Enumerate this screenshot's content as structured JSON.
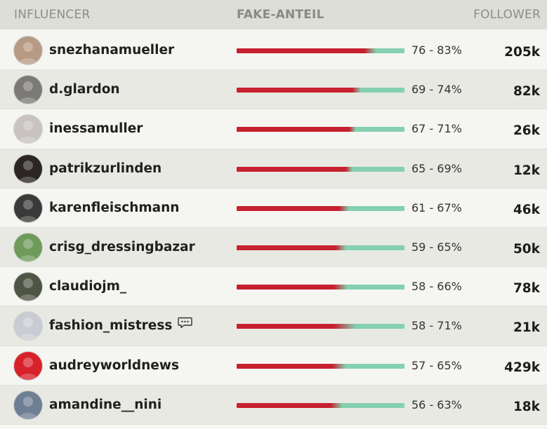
{
  "header": {
    "influencer": "INFLUENCER",
    "fake": "FAKE-ANTEIL",
    "follower": "FOLLOWER"
  },
  "colors": {
    "fake_bar": "#c7202f",
    "real_bar": "#84d0b0"
  },
  "chart_data": {
    "type": "table",
    "columns": [
      "INFLUENCER",
      "FAKE-ANTEIL",
      "FOLLOWER"
    ],
    "rows": [
      {
        "name": "snezhanamueller",
        "fake_min": 76,
        "fake_max": 83,
        "range": "76 - 83%",
        "followers": "205k",
        "avatar_color": "#b79a84",
        "icon": null
      },
      {
        "name": "d.glardon",
        "fake_min": 69,
        "fake_max": 74,
        "range": "69 - 74%",
        "followers": "82k",
        "avatar_color": "#7c7a76",
        "icon": null
      },
      {
        "name": "inessamuller",
        "fake_min": 67,
        "fake_max": 71,
        "range": "67 - 71%",
        "followers": "26k",
        "avatar_color": "#c8c3c2",
        "icon": null
      },
      {
        "name": "patrikzurlinden",
        "fake_min": 65,
        "fake_max": 69,
        "range": "65 - 69%",
        "followers": "12k",
        "avatar_color": "#2b2624",
        "icon": null
      },
      {
        "name": "karenfleischmann",
        "fake_min": 61,
        "fake_max": 67,
        "range": "61 - 67%",
        "followers": "46k",
        "avatar_color": "#3a3a3a",
        "icon": null
      },
      {
        "name": "crisg_dressingbazar",
        "fake_min": 59,
        "fake_max": 65,
        "range": "59 - 65%",
        "followers": "50k",
        "avatar_color": "#6e9a5a",
        "icon": null
      },
      {
        "name": "claudiojm_",
        "fake_min": 58,
        "fake_max": 66,
        "range": "58 - 66%",
        "followers": "78k",
        "avatar_color": "#4e5544",
        "icon": null
      },
      {
        "name": "fashion_mistress",
        "fake_min": 58,
        "fake_max": 71,
        "range": "58 - 71%",
        "followers": "21k",
        "avatar_color": "#c9ccd2",
        "icon": "comment-icon"
      },
      {
        "name": "audreyworldnews",
        "fake_min": 57,
        "fake_max": 65,
        "range": "57 - 65%",
        "followers": "429k",
        "avatar_color": "#d8222b",
        "icon": null
      },
      {
        "name": "amandine__nini",
        "fake_min": 56,
        "fake_max": 63,
        "range": "56 - 63%",
        "followers": "18k",
        "avatar_color": "#6e7f93",
        "icon": null
      }
    ]
  }
}
